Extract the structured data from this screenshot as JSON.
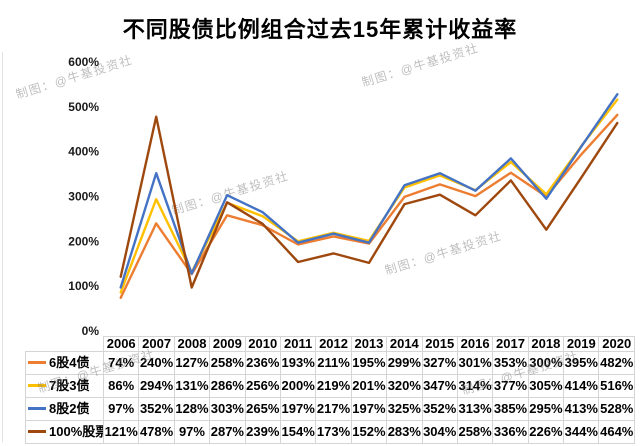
{
  "title": "不同股债比例组合过去15年累计收益率",
  "watermark": {
    "text": "制图：@牛基投资社"
  },
  "chart_data": {
    "type": "line",
    "title": "不同股债比例组合过去15年累计收益率",
    "categories": [
      "2006",
      "2007",
      "2008",
      "2009",
      "2010",
      "2011",
      "2012",
      "2013",
      "2014",
      "2015",
      "2016",
      "2017",
      "2018",
      "2019",
      "2020"
    ],
    "series": [
      {
        "name": "6股4债",
        "color": "#ED7D31",
        "values": [
          74,
          240,
          127,
          258,
          236,
          193,
          211,
          195,
          299,
          327,
          301,
          353,
          300,
          395,
          482
        ]
      },
      {
        "name": "7股3债",
        "color": "#FFC000",
        "values": [
          86,
          294,
          131,
          286,
          256,
          200,
          219,
          201,
          320,
          347,
          314,
          377,
          305,
          414,
          516
        ]
      },
      {
        "name": "8股2债",
        "color": "#4472C4",
        "values": [
          97,
          352,
          128,
          303,
          265,
          197,
          217,
          197,
          325,
          352,
          313,
          385,
          295,
          413,
          528
        ]
      },
      {
        "name": "100%股票",
        "color": "#9E480E",
        "values": [
          121,
          478,
          97,
          287,
          239,
          154,
          173,
          152,
          283,
          304,
          258,
          336,
          226,
          344,
          464
        ]
      }
    ],
    "value_suffix": "%",
    "ylim": [
      0,
      600
    ],
    "ytick_labels": [
      "600%",
      "500%",
      "400%",
      "300%",
      "200%",
      "100%",
      "0%"
    ],
    "grid": false,
    "legend_position": "table-left"
  }
}
